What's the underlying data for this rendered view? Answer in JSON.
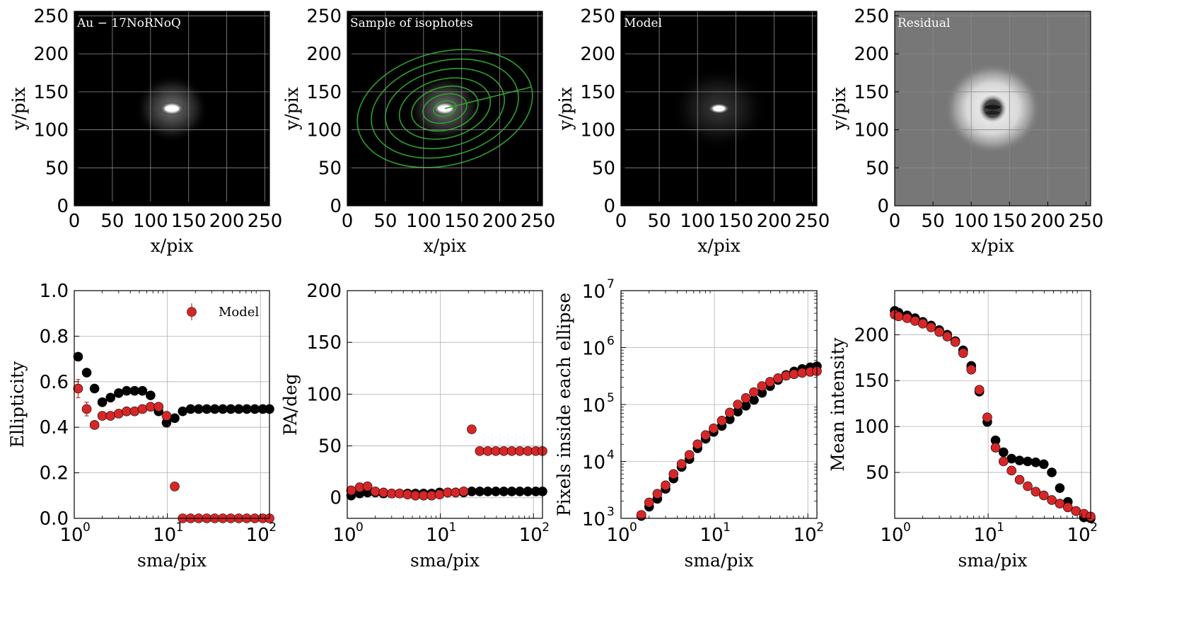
{
  "colors": {
    "model": "#d62728",
    "data": "#000000",
    "isophote": "#2ca02c",
    "grid": "#b0b0b0"
  },
  "images": [
    {
      "label": "Au − 17NoRNoQ",
      "xlabel": "x/pix",
      "ylabel": "y/pix",
      "xticks": [
        "0",
        "50",
        "100",
        "150",
        "200",
        "250"
      ],
      "yticks": [
        "0",
        "50",
        "100",
        "150",
        "200",
        "250"
      ],
      "kind": "galaxy",
      "range": [
        0,
        256
      ]
    },
    {
      "label": "Sample of isophotes",
      "xlabel": "x/pix",
      "ylabel": "y/pix",
      "xticks": [
        "0",
        "50",
        "100",
        "150",
        "200",
        "250"
      ],
      "yticks": [
        "0",
        "50",
        "100",
        "150",
        "200",
        "250"
      ],
      "kind": "isophotes",
      "range": [
        0,
        256
      ]
    },
    {
      "label": "Model",
      "xlabel": "x/pix",
      "ylabel": "y/pix",
      "xticks": [
        "0",
        "50",
        "100",
        "150",
        "200",
        "250"
      ],
      "yticks": [
        "0",
        "50",
        "100",
        "150",
        "200",
        "250"
      ],
      "kind": "model",
      "range": [
        0,
        256
      ]
    },
    {
      "label": "Residual",
      "xlabel": "x/pix",
      "ylabel": "y/pix",
      "xticks": [
        "0",
        "50",
        "100",
        "150",
        "200",
        "250"
      ],
      "yticks": [
        "0",
        "50",
        "100",
        "150",
        "200",
        "250"
      ],
      "kind": "residual",
      "range": [
        0,
        256
      ]
    }
  ],
  "chart_data": [
    {
      "type": "scatter",
      "xlabel": "sma/pix",
      "ylabel": "Ellipticity",
      "xscale": "log",
      "xlim": [
        1,
        125
      ],
      "ylim": [
        0,
        1.0
      ],
      "yticks": [
        "0.0",
        "0.2",
        "0.4",
        "0.6",
        "0.8",
        "1.0"
      ],
      "legend": {
        "entries": [
          "Model"
        ],
        "position": "top-right"
      },
      "series": [
        {
          "name": "",
          "color": "data",
          "x": [
            1.1,
            1.36,
            1.65,
            2.0,
            2.45,
            3.0,
            3.65,
            4.45,
            5.4,
            6.6,
            8.05,
            9.8,
            12.0,
            14.6,
            17.8,
            21.7,
            26.5,
            32.3,
            39.4,
            48.0,
            58.5,
            71.3,
            87.0,
            106,
            125
          ],
          "y": [
            0.71,
            0.64,
            0.57,
            0.51,
            0.53,
            0.55,
            0.56,
            0.56,
            0.56,
            0.54,
            0.47,
            0.42,
            0.44,
            0.47,
            0.48,
            0.48,
            0.48,
            0.48,
            0.48,
            0.48,
            0.48,
            0.48,
            0.48,
            0.48,
            0.48
          ]
        },
        {
          "name": "Model",
          "color": "model",
          "x": [
            1.1,
            1.36,
            1.65,
            2.0,
            2.45,
            3.0,
            3.65,
            4.45,
            5.4,
            6.6,
            8.05,
            9.8,
            12.0,
            14.6,
            17.8,
            21.7,
            26.5,
            32.3,
            39.4,
            48.0,
            58.5,
            71.3,
            87.0,
            106,
            125
          ],
          "y": [
            0.57,
            0.48,
            0.41,
            0.45,
            0.45,
            0.46,
            0.47,
            0.47,
            0.48,
            0.49,
            0.49,
            0.45,
            0.14,
            0.0,
            0.0,
            0.0,
            0.0,
            0.0,
            0.0,
            0.0,
            0.0,
            0.0,
            0.0,
            0.0,
            0.0
          ],
          "err": [
            0.04,
            0.03,
            0,
            0,
            0,
            0,
            0,
            0,
            0,
            0,
            0,
            0,
            0,
            0,
            0,
            0,
            0,
            0,
            0,
            0,
            0,
            0,
            0,
            0,
            0
          ]
        }
      ]
    },
    {
      "type": "scatter",
      "xlabel": "sma/pix",
      "ylabel": "PA/deg",
      "xscale": "log",
      "xlim": [
        1,
        125
      ],
      "ylim": [
        -20,
        200
      ],
      "yticks": [
        "0",
        "50",
        "100",
        "150",
        "200"
      ],
      "series": [
        {
          "name": "",
          "color": "data",
          "x": [
            1.1,
            1.36,
            1.65,
            2.0,
            2.45,
            3.0,
            3.65,
            4.45,
            5.4,
            6.6,
            8.05,
            9.8,
            12.0,
            14.6,
            17.8,
            21.7,
            26.5,
            32.3,
            39.4,
            48.0,
            58.5,
            71.3,
            87.0,
            106,
            125
          ],
          "y": [
            2,
            4,
            5,
            5,
            4,
            4,
            4,
            4,
            4,
            4,
            4,
            5,
            5,
            5,
            5,
            6,
            6,
            6,
            6,
            6,
            6,
            6,
            6,
            6,
            6
          ]
        },
        {
          "name": "Model",
          "color": "model",
          "x": [
            1.1,
            1.36,
            1.65,
            2.0,
            2.45,
            3.0,
            3.65,
            4.45,
            5.4,
            6.6,
            8.05,
            9.8,
            12.0,
            14.6,
            17.8,
            21.7,
            26.5,
            32.3,
            39.4,
            48.0,
            58.5,
            71.3,
            87.0,
            106,
            125
          ],
          "y": [
            7,
            10,
            11,
            6,
            5,
            4,
            4,
            3,
            2,
            2,
            2,
            3,
            5,
            5,
            6,
            66,
            45,
            45,
            45,
            45,
            45,
            45,
            45,
            45,
            45
          ]
        }
      ]
    },
    {
      "type": "scatter",
      "xlabel": "sma/pix",
      "ylabel": "Pixels inside each ellipse",
      "xscale": "log",
      "yscale": "log",
      "xlim": [
        1,
        125
      ],
      "ylim": [
        1000,
        10000000
      ],
      "yticks": [
        "3",
        "4",
        "5",
        "6",
        "7"
      ],
      "series": [
        {
          "name": "",
          "color": "data",
          "x": [
            1.65,
            2.0,
            2.45,
            3.0,
            3.65,
            4.45,
            5.4,
            6.6,
            8.05,
            9.8,
            12.0,
            14.6,
            17.8,
            21.7,
            26.5,
            32.3,
            39.4,
            48.0,
            58.5,
            71.3,
            87.0,
            106,
            125
          ],
          "y": [
            1100,
            1600,
            2200,
            3300,
            5000,
            8000,
            11000,
            17000,
            25000,
            33000,
            42000,
            55000,
            75000,
            95000,
            120000,
            160000,
            210000,
            270000,
            330000,
            380000,
            420000,
            450000,
            470000
          ]
        },
        {
          "name": "Model",
          "color": "model",
          "x": [
            1.65,
            2.0,
            2.45,
            3.0,
            3.65,
            4.45,
            5.4,
            6.6,
            8.05,
            9.8,
            12.0,
            14.6,
            17.8,
            21.7,
            26.5,
            32.3,
            39.4,
            48.0,
            58.5,
            71.3,
            87.0,
            106,
            125
          ],
          "y": [
            1150,
            1900,
            2700,
            3800,
            6000,
            9000,
            13000,
            20000,
            29000,
            38000,
            52000,
            72000,
            100000,
            130000,
            165000,
            210000,
            250000,
            290000,
            320000,
            340000,
            360000,
            375000,
            385000
          ]
        }
      ]
    },
    {
      "type": "scatter",
      "xlabel": "sma/pix",
      "ylabel": "Mean intensity",
      "xscale": "log",
      "xlim": [
        1,
        125
      ],
      "ylim": [
        0,
        248
      ],
      "yticks": [
        "50",
        "100",
        "150",
        "200"
      ],
      "series": [
        {
          "name": "",
          "color": "data",
          "x": [
            1.0,
            1.1,
            1.36,
            1.65,
            2.0,
            2.45,
            3.0,
            3.65,
            4.45,
            5.4,
            6.6,
            8.05,
            9.8,
            12.0,
            14.6,
            17.8,
            21.7,
            26.5,
            32.3,
            39.4,
            48.0,
            58.5,
            71.3,
            87.0,
            106,
            125
          ],
          "y": [
            226,
            224,
            221,
            218,
            214,
            210,
            205,
            200,
            193,
            183,
            166,
            138,
            105,
            85,
            72,
            65,
            63,
            62,
            61,
            59,
            50,
            33,
            18,
            8,
            1,
            0
          ]
        },
        {
          "name": "Model",
          "color": "model",
          "x": [
            1.0,
            1.1,
            1.36,
            1.65,
            2.0,
            2.45,
            3.0,
            3.65,
            4.45,
            5.4,
            6.6,
            8.05,
            9.8,
            12.0,
            14.6,
            17.8,
            21.7,
            26.5,
            32.3,
            39.4,
            48.0,
            58.5,
            71.3,
            87.0,
            106,
            125
          ],
          "y": [
            222,
            220,
            218,
            215,
            212,
            208,
            203,
            198,
            192,
            180,
            162,
            140,
            110,
            77,
            62,
            52,
            42,
            35,
            29,
            25,
            20,
            16,
            12,
            8,
            5,
            2
          ]
        }
      ]
    }
  ]
}
